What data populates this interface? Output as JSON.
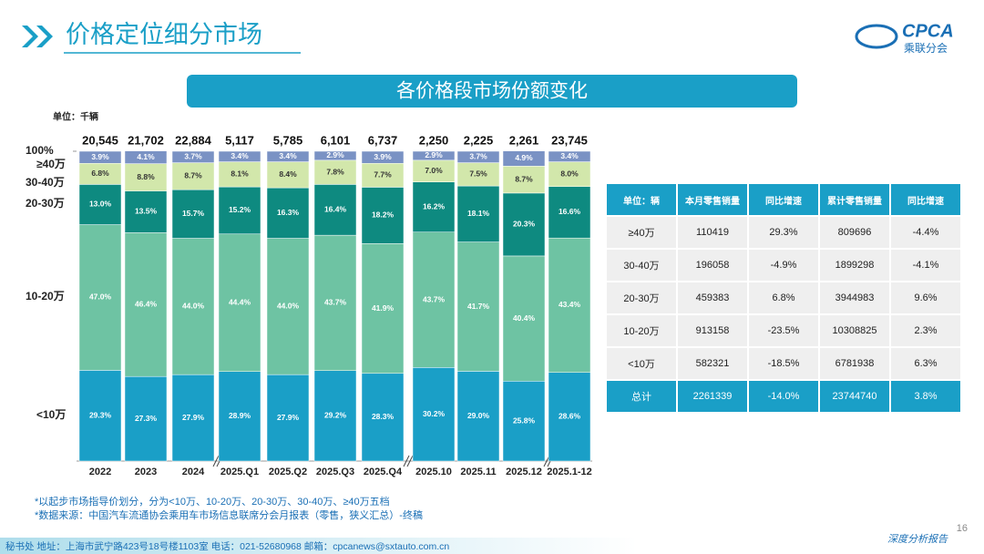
{
  "header": {
    "title": "价格定位细分市场",
    "logo": "CPCA",
    "logo_sub": "乘联分会"
  },
  "chart_data": {
    "type": "bar",
    "stacked": true,
    "title": "各价格段市场份额变化",
    "unit_label": "单位：千辆",
    "categories": [
      "2022",
      "2023",
      "2024",
      "2025.Q1",
      "2025.Q2",
      "2025.Q3",
      "2025.Q4",
      "2025.10",
      "2025.11",
      "2025.12",
      "2025.1-12"
    ],
    "ylim": [
      0,
      100
    ],
    "yticks": [
      {
        "value": 100,
        "label": "100%"
      }
    ],
    "totals": {
      "values": [
        20545,
        21702,
        22884,
        5117,
        5785,
        6101,
        6737,
        2250,
        2225,
        2261,
        23745
      ],
      "value_labels": [
        "20,545",
        "21,702",
        "22,884",
        "5,117",
        "5,785",
        "6,101",
        "6,737",
        "2,250",
        "2,225",
        "2,261",
        "23,745"
      ]
    },
    "series": [
      {
        "name": "<10万",
        "color": "#1a9fc7",
        "values": [
          29.3,
          27.3,
          27.9,
          28.9,
          27.9,
          29.2,
          28.3,
          30.2,
          29.0,
          25.8,
          28.6
        ],
        "value_labels": [
          "29.3%",
          "27.3%",
          "27.9%",
          "28.9%",
          "27.9%",
          "29.2%",
          "28.3%",
          "30.2%",
          "29.0%",
          "25.8%",
          "28.6%"
        ]
      },
      {
        "name": "10-20万",
        "color": "#6ec3a3",
        "values": [
          47.0,
          46.4,
          44.0,
          44.4,
          44.0,
          43.7,
          41.9,
          43.7,
          41.7,
          40.4,
          43.4
        ],
        "value_labels": [
          "47.0%",
          "46.4%",
          "44.0%",
          "44.4%",
          "44.0%",
          "43.7%",
          "41.9%",
          "43.7%",
          "41.7%",
          "40.4%",
          "43.4%"
        ]
      },
      {
        "name": "20-30万",
        "color": "#0e8a80",
        "values": [
          13.0,
          13.5,
          15.7,
          15.2,
          16.3,
          16.4,
          18.2,
          16.2,
          18.1,
          20.3,
          16.6
        ],
        "value_labels": [
          "13.0%",
          "13.5%",
          "15.7%",
          "15.2%",
          "16.3%",
          "16.4%",
          "18.2%",
          "16.2%",
          "18.1%",
          "20.3%",
          "16.6%"
        ]
      },
      {
        "name": "30-40万",
        "color": "#d2e7ab",
        "values": [
          6.8,
          8.8,
          8.7,
          8.1,
          8.4,
          7.8,
          7.7,
          7.0,
          7.5,
          8.7,
          8.0
        ],
        "value_labels": [
          "6.8%",
          "8.8%",
          "8.7%",
          "8.1%",
          "8.4%",
          "7.8%",
          "7.7%",
          "7.0%",
          "7.5%",
          "8.7%",
          "8.0%"
        ]
      },
      {
        "name": "≥40万",
        "color": "#7a92c4",
        "values": [
          3.9,
          4.1,
          3.7,
          3.4,
          3.4,
          2.9,
          3.9,
          2.9,
          3.7,
          4.9,
          3.4
        ],
        "value_labels": [
          "3.9%",
          "4.1%",
          "3.7%",
          "3.4%",
          "3.4%",
          "2.9%",
          "3.9%",
          "2.9%",
          "3.7%",
          "4.9%",
          "3.4%"
        ]
      }
    ]
  },
  "table": {
    "header": [
      "单位：辆",
      "本月零售销量",
      "同比增速",
      "累计零售销量",
      "同比增速"
    ],
    "rows": [
      [
        "≥40万",
        "110419",
        "29.3%",
        "809696",
        "-4.4%"
      ],
      [
        "30-40万",
        "196058",
        "-4.9%",
        "1899298",
        "-4.1%"
      ],
      [
        "20-30万",
        "459383",
        "6.8%",
        "3944983",
        "9.6%"
      ],
      [
        "10-20万",
        "913158",
        "-23.5%",
        "10308825",
        "2.3%"
      ],
      [
        "<10万",
        "582321",
        "-18.5%",
        "6781938",
        "6.3%"
      ],
      [
        "总计",
        "2261339",
        "-14.0%",
        "23744740",
        "3.8%"
      ]
    ]
  },
  "notes": [
    "*以起步市场指导价划分，分为<10万、10-20万、20-30万、30-40万、≥40万五档",
    "*数据来源：中国汽车流通协会乘用车市场信息联席分会月报表（零售，狭义汇总）-终稿"
  ],
  "footer": {
    "contact": "秘书处   地址：上海市武宁路423号18号楼1103室   电话：021-52680968   邮箱：cpcanews@sxtauto.com.cn",
    "report": "深度分析报告",
    "page": "16"
  }
}
